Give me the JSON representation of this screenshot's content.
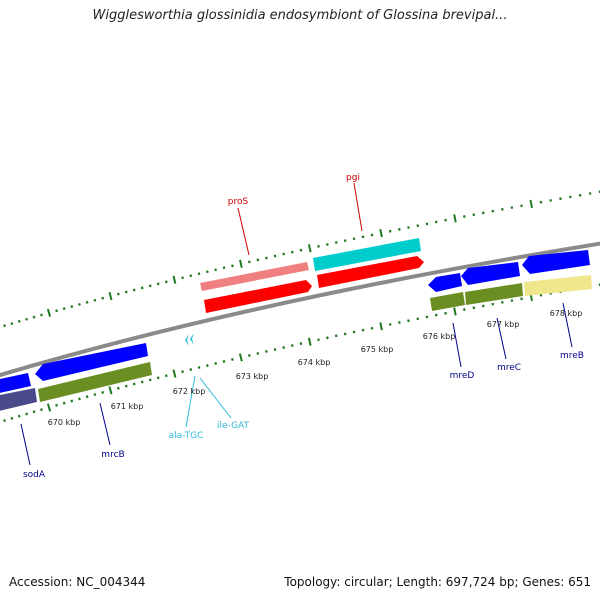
{
  "title": "Wigglesworthia glossinidia endosymbiont of Glossina brevipal...",
  "footer": {
    "accession": "Accession: NC_004344",
    "topology": "Topology: circular; Length: 697,724 bp; Genes: 651"
  },
  "colors": {
    "backbone": "#8a8a8a",
    "tick": "#1f7a1f",
    "cds_forward": "#ff0000",
    "cds_forward_light": "#f08080",
    "cds_reverse": "#0000ff",
    "cds_reverse_dark": "#4a4a8a",
    "cds_teal": "#00cccc",
    "cds_olive": "#6b8e23",
    "cds_khaki": "#f0e68c",
    "trna": "#33bbdd",
    "label_red": "#cc0000",
    "label_blue": "#00008b",
    "label_cyan": "#33bbdd"
  },
  "scale_labels": [
    "670 kbp",
    "671 kbp",
    "672 kbp",
    "673 kbp",
    "674 kbp",
    "675 kbp",
    "676 kbp",
    "677 kbp",
    "678 kbp"
  ],
  "gene_labels": {
    "proS": "proS",
    "pgi": "pgi",
    "sodA": "sodA",
    "mrcB": "mrcB",
    "ala_TGC": "ala-TGC",
    "ile_GAT": "ile-GAT",
    "mreD": "mreD",
    "mreC": "mreC",
    "mreB": "mreB"
  }
}
